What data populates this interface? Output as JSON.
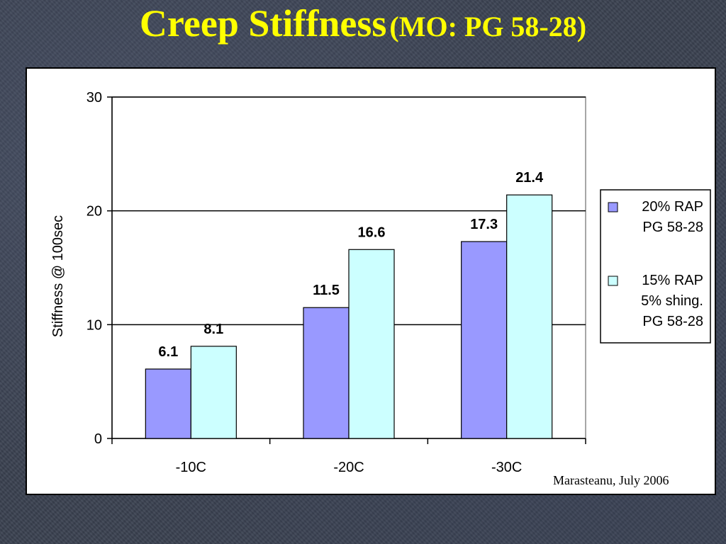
{
  "slide": {
    "title": "Creep Stiffness",
    "subtitle": "(MO: PG 58-28)",
    "credit": "Marasteanu, July 2006"
  },
  "colors": {
    "title": "#ffff00",
    "series1": "#9999ff",
    "series2": "#ccffff"
  },
  "chart_data": {
    "type": "bar",
    "categories": [
      "-10C",
      "-20C",
      "-30C"
    ],
    "series": [
      {
        "name": "20% RAP PG 58-28",
        "legend_lines": [
          "20% RAP",
          "PG 58-28"
        ],
        "color": "#9999ff",
        "values": [
          6.1,
          11.5,
          17.3
        ]
      },
      {
        "name": "15% RAP 5% shing. PG 58-28",
        "legend_lines": [
          "15% RAP",
          "5% shing.",
          "PG 58-28"
        ],
        "color": "#ccffff",
        "values": [
          8.1,
          16.6,
          21.4
        ]
      }
    ],
    "ylabel": "Stiffness @ 100sec",
    "xlabel": "",
    "ylim": [
      0,
      30
    ],
    "yticks": [
      0,
      10,
      20,
      30
    ],
    "grid": true,
    "legend": "right"
  }
}
